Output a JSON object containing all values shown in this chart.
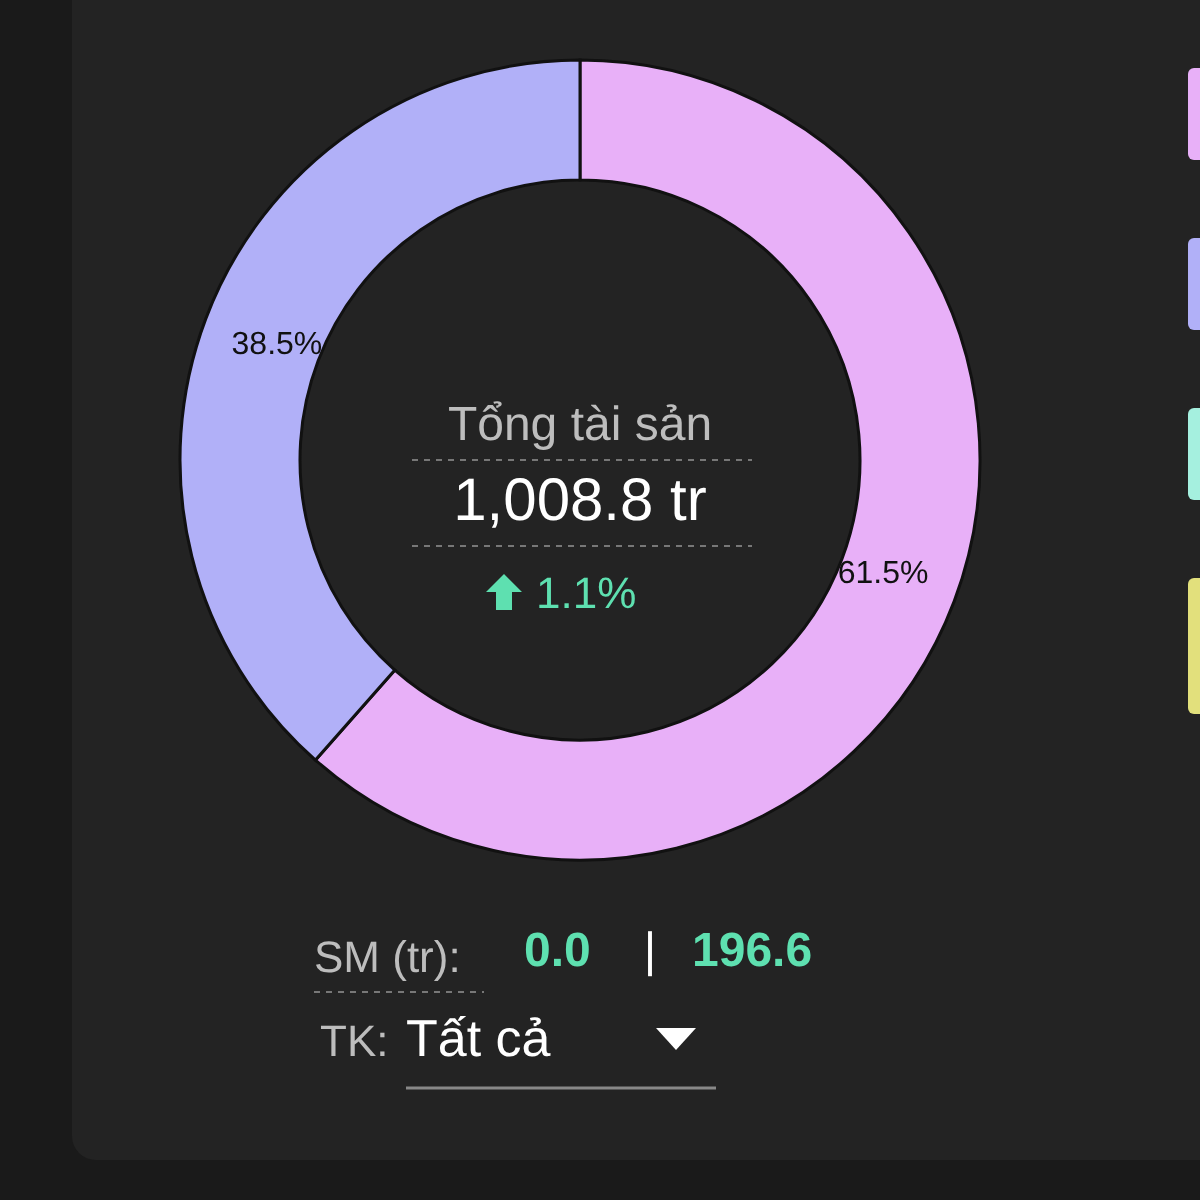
{
  "chart_data": {
    "type": "donut",
    "categories": [
      null,
      null
    ],
    "values": [
      61.5,
      38.5
    ],
    "colors": [
      "#e8b0f8",
      "#b1b0f8"
    ],
    "value_labels": [
      "61.5%",
      "38.5%"
    ],
    "title": "Tổng tài sản",
    "subtitle": "1,008.8 tr",
    "annotations": [
      "1.1%",
      "SM (tr):",
      "0.0",
      "|",
      "196.6",
      "TK:",
      "Tất cả"
    ]
  }
}
